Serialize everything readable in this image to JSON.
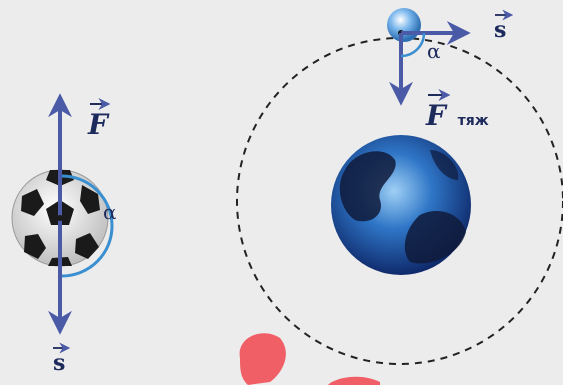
{
  "left_figure": {
    "force_label": "F",
    "displacement_label": "s",
    "angle_label": "α"
  },
  "right_figure": {
    "force_label": "F",
    "force_subscript": "тяж",
    "displacement_label": "s",
    "angle_label": "α"
  },
  "colors": {
    "arrow": "#4b5aa6",
    "arc": "#3a8fd0",
    "text": "#1d2a5c",
    "orbit": "#222222",
    "earth_ocean": "#2f76c7",
    "earth_land": "#0f1a3a",
    "satellite": "#79b6ec",
    "ball_white": "#f2f2f2",
    "ball_black": "#1a1a1a",
    "highlight": "#f05f66",
    "background": "#ececec"
  }
}
